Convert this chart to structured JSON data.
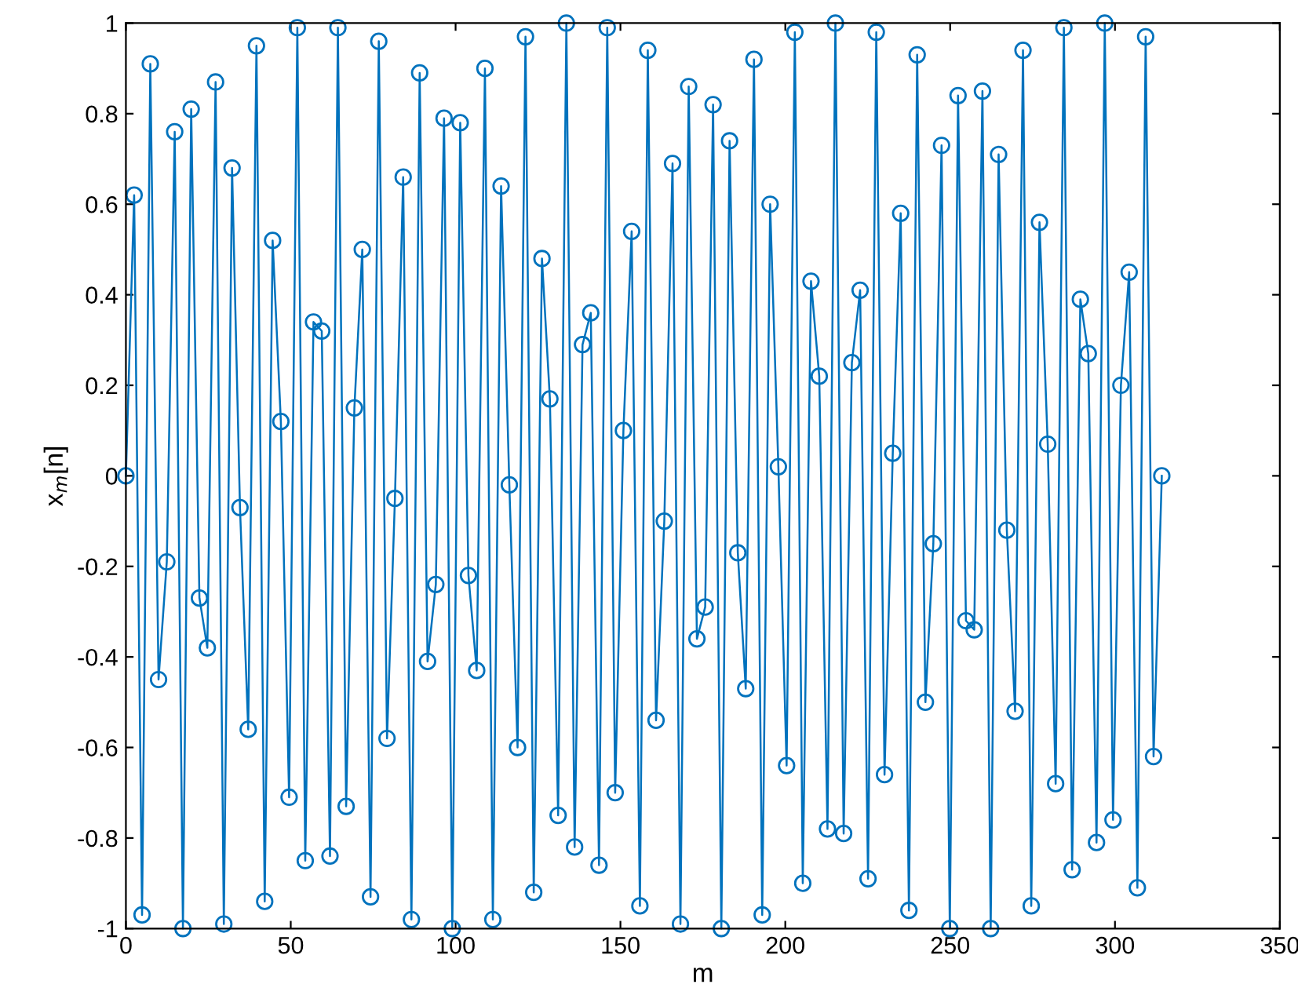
{
  "chart_data": {
    "type": "line",
    "xlabel": "m",
    "ylabel": "x$_{m}$[n]",
    "x": [
      0,
      2.5,
      4.9,
      7.4,
      9.9,
      12.4,
      14.8,
      17.3,
      19.8,
      22.3,
      24.7,
      27.2,
      29.7,
      32.2,
      34.6,
      37.1,
      39.6,
      42.1,
      44.5,
      47.0,
      49.5,
      52.0,
      54.4,
      56.9,
      59.4,
      61.9,
      64.3,
      66.8,
      69.3,
      71.7,
      74.2,
      76.7,
      79.2,
      81.6,
      84.1,
      86.6,
      89.1,
      91.5,
      94.0,
      96.5,
      99.0,
      101.4,
      103.9,
      106.4,
      108.9,
      111.3,
      113.8,
      116.3,
      118.8,
      121.2,
      123.7,
      126.2,
      128.6,
      131.1,
      133.6,
      136.1,
      138.5,
      141.0,
      143.5,
      146.0,
      148.4,
      150.9,
      153.4,
      155.9,
      158.3,
      160.8,
      163.3,
      165.8,
      168.2,
      170.7,
      173.2,
      175.7,
      178.1,
      180.6,
      183.1,
      185.6,
      188.0,
      190.5,
      193.0,
      195.4,
      197.9,
      200.4,
      202.9,
      205.3,
      207.8,
      210.3,
      212.8,
      215.2,
      217.7,
      220.2,
      222.7,
      225.1,
      227.6,
      230.1,
      232.6,
      235.0,
      237.5,
      240.0,
      242.5,
      244.9,
      247.4,
      249.9,
      252.4,
      254.8,
      257.3,
      259.8,
      262.3,
      264.7,
      267.2,
      269.7,
      272.1,
      274.6,
      277.1,
      279.6,
      282.0,
      284.5,
      287.0,
      289.5,
      291.9,
      294.4,
      296.9,
      299.4,
      301.8,
      304.3,
      306.8,
      309.3,
      311.7,
      314.2
    ],
    "series": [
      {
        "color": "#0072bd",
        "values": [
          0,
          0.62,
          -0.97,
          0.91,
          -0.45,
          -0.19,
          0.76,
          -1.0,
          0.81,
          -0.27,
          -0.38,
          0.87,
          -0.99,
          0.68,
          -0.07,
          -0.56,
          0.95,
          -0.94,
          0.52,
          0.12,
          -0.71,
          0.99,
          -0.85,
          0.34,
          0.32,
          -0.84,
          0.99,
          -0.73,
          0.15,
          0.5,
          -0.93,
          0.96,
          -0.58,
          -0.05,
          0.66,
          -0.98,
          0.89,
          -0.41,
          -0.24,
          0.79,
          -1.0,
          0.78,
          -0.22,
          -0.43,
          0.9,
          -0.98,
          0.64,
          -0.02,
          -0.6,
          0.97,
          -0.92,
          0.48,
          0.17,
          -0.75,
          1.0,
          -0.82,
          0.29,
          0.36,
          -0.86,
          0.99,
          -0.7,
          0.1,
          0.54,
          -0.95,
          0.94,
          -0.54,
          -0.1,
          0.69,
          -0.99,
          0.86,
          -0.36,
          -0.29,
          0.82,
          -1.0,
          0.74,
          -0.17,
          -0.47,
          0.92,
          -0.97,
          0.6,
          0.02,
          -0.64,
          0.98,
          -0.9,
          0.43,
          0.22,
          -0.78,
          1.0,
          -0.79,
          0.25,
          0.41,
          -0.89,
          0.98,
          -0.66,
          0.05,
          0.58,
          -0.96,
          0.93,
          -0.5,
          -0.15,
          0.73,
          -1.0,
          0.84,
          -0.32,
          -0.34,
          0.85,
          -1.0,
          0.71,
          -0.12,
          -0.52,
          0.94,
          -0.95,
          0.56,
          0.07,
          -0.68,
          0.99,
          -0.87,
          0.39,
          0.27,
          -0.81,
          1.0,
          -0.76,
          0.2,
          0.45,
          -0.91,
          0.97,
          -0.62,
          0.0
        ]
      }
    ],
    "xlim": [
      0,
      350
    ],
    "xticks": [
      0,
      50,
      100,
      150,
      200,
      250,
      300,
      350
    ],
    "ylim": [
      -1,
      1
    ],
    "yticks": [
      -1,
      -0.8,
      -0.6,
      -0.4,
      -0.2,
      0,
      0.2,
      0.4,
      0.6,
      0.8,
      1
    ],
    "marker": "circle",
    "line_style": "solid",
    "grid": false,
    "legend": false
  }
}
